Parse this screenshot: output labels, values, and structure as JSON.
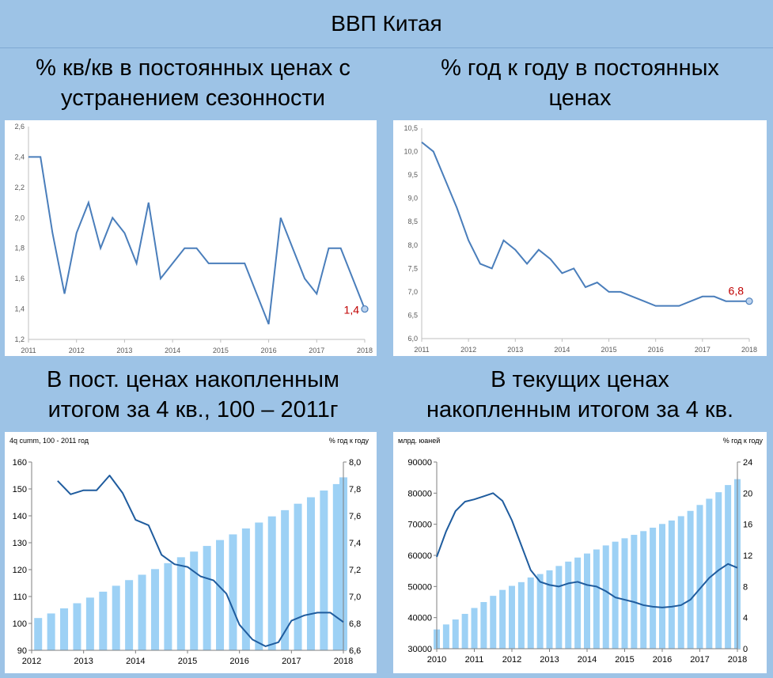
{
  "page_title": "ВВП Китая",
  "headers": [
    {
      "line1": "% кв/кв в постоянных ценах с",
      "line2": "устранением сезонности"
    },
    {
      "line1": "% год к году в постоянных",
      "line2": "ценах"
    },
    {
      "line1": "В пост. ценах накопленным",
      "line2": "итогом за 4 кв., 100 – 2011г"
    },
    {
      "line1": "В текущих ценах",
      "line2": "накопленным итогом за 4 кв."
    }
  ],
  "chart_data": [
    {
      "type": "line",
      "title": "",
      "y_ticks": [
        "2,6",
        "2,4",
        "2,2",
        "2,0",
        "1,8",
        "1,6",
        "1,4",
        "1,2"
      ],
      "x_ticks": [
        "2011",
        "2012",
        "2013",
        "2014",
        "2015",
        "2016",
        "2017",
        "2018"
      ],
      "ylim": [
        1.2,
        2.6
      ],
      "xlim": [
        2011,
        2018
      ],
      "x": [
        2011.0,
        2011.25,
        2011.5,
        2011.75,
        2012.0,
        2012.25,
        2012.5,
        2012.75,
        2013.0,
        2013.25,
        2013.5,
        2013.75,
        2014.0,
        2014.25,
        2014.5,
        2014.75,
        2015.0,
        2015.25,
        2015.5,
        2015.75,
        2016.0,
        2016.25,
        2016.5,
        2016.75,
        2017.0,
        2017.25,
        2017.5,
        2017.75,
        2018.0
      ],
      "values": [
        2.4,
        2.4,
        1.9,
        1.5,
        1.9,
        2.1,
        1.8,
        2.0,
        1.9,
        1.7,
        2.1,
        1.6,
        1.7,
        1.8,
        1.8,
        1.7,
        1.7,
        1.7,
        1.7,
        1.5,
        1.3,
        2.0,
        1.8,
        1.6,
        1.5,
        1.8,
        1.8,
        1.6,
        1.4
      ],
      "last_label": "1,4",
      "color": "#4a7ebb",
      "label_color": "#c00000",
      "grid": false
    },
    {
      "type": "line",
      "title": "",
      "y_ticks": [
        "10,5",
        "10,0",
        "9,5",
        "9,0",
        "8,5",
        "8,0",
        "7,5",
        "7,0",
        "6,5",
        "6,0"
      ],
      "x_ticks": [
        "2011",
        "2012",
        "2013",
        "2014",
        "2015",
        "2016",
        "2017",
        "2018"
      ],
      "ylim": [
        6.0,
        10.5
      ],
      "xlim": [
        2011,
        2018
      ],
      "x": [
        2011.0,
        2011.25,
        2011.5,
        2011.75,
        2012.0,
        2012.25,
        2012.5,
        2012.75,
        2013.0,
        2013.25,
        2013.5,
        2013.75,
        2014.0,
        2014.25,
        2014.5,
        2014.75,
        2015.0,
        2015.25,
        2015.5,
        2015.75,
        2016.0,
        2016.25,
        2016.5,
        2016.75,
        2017.0,
        2017.25,
        2017.5,
        2017.75,
        2018.0
      ],
      "values": [
        10.2,
        10.0,
        9.4,
        8.8,
        8.1,
        7.6,
        7.5,
        8.1,
        7.9,
        7.6,
        7.9,
        7.7,
        7.4,
        7.5,
        7.1,
        7.2,
        7.0,
        7.0,
        6.9,
        6.8,
        6.7,
        6.7,
        6.7,
        6.8,
        6.9,
        6.9,
        6.8,
        6.8,
        6.8
      ],
      "last_label": "6,8",
      "color": "#4a7ebb",
      "label_color": "#c00000",
      "grid": false
    },
    {
      "type": "bar+line",
      "title": "4q cumm, 100 - 2011 год",
      "right_title": "% год к году",
      "y_ticks": [
        "160",
        "150",
        "140",
        "130",
        "120",
        "110",
        "100",
        "90"
      ],
      "y2_ticks": [
        "8,0",
        "7,8",
        "7,6",
        "7,4",
        "7,2",
        "7,0",
        "6,8",
        "6,6"
      ],
      "x_ticks": [
        "2012",
        "2013",
        "2014",
        "2015",
        "2016",
        "2017",
        "2018"
      ],
      "ylim": [
        90,
        160
      ],
      "y2lim": [
        6.6,
        8.0
      ],
      "xlim": [
        2012,
        2018
      ],
      "bar_x": [
        2012.125,
        2012.375,
        2012.625,
        2012.875,
        2013.125,
        2013.375,
        2013.625,
        2013.875,
        2014.125,
        2014.375,
        2014.625,
        2014.875,
        2015.125,
        2015.375,
        2015.625,
        2015.875,
        2016.125,
        2016.375,
        2016.625,
        2016.875,
        2017.125,
        2017.375,
        2017.625,
        2017.875
      ],
      "bars": [
        102,
        103.7,
        105.6,
        107.5,
        109.6,
        111.8,
        114,
        116.1,
        118.1,
        120.2,
        122.4,
        124.6,
        126.7,
        128.8,
        131,
        133.1,
        135.3,
        137.5,
        139.8,
        142.1,
        144.5,
        146.9,
        149.4,
        151.8
      ],
      "bar_end": {
        "x": 2018.0,
        "value": 154.3
      },
      "line_x": [
        2012.5,
        2012.75,
        2013.0,
        2013.25,
        2013.5,
        2013.75,
        2014.0,
        2014.25,
        2014.5,
        2014.75,
        2015.0,
        2015.25,
        2015.5,
        2015.75,
        2016.0,
        2016.25,
        2016.5,
        2016.75,
        2017.0,
        2017.25,
        2017.5,
        2017.75,
        2018.0
      ],
      "line": [
        7.86,
        7.76,
        7.79,
        7.79,
        7.9,
        7.77,
        7.57,
        7.53,
        7.31,
        7.24,
        7.22,
        7.15,
        7.12,
        7.02,
        6.79,
        6.68,
        6.63,
        6.66,
        6.82,
        6.86,
        6.88,
        6.88,
        6.81
      ],
      "bar_color": "#9dd1f5",
      "line_color": "#1f5c9e"
    },
    {
      "type": "bar+line",
      "title": "млрд. юаней",
      "right_title": "% год к году",
      "y_ticks": [
        "90000",
        "80000",
        "70000",
        "60000",
        "50000",
        "40000",
        "30000"
      ],
      "y2_ticks": [
        "24",
        "20",
        "16",
        "12",
        "8",
        "4",
        "0"
      ],
      "x_ticks": [
        "2010",
        "2011",
        "2012",
        "2013",
        "2014",
        "2015",
        "2016",
        "2017",
        "2018"
      ],
      "ylim": [
        30000,
        90000
      ],
      "y2lim": [
        0,
        24
      ],
      "xlim": [
        2010,
        2018
      ],
      "bar_x": [
        2010.0,
        2010.25,
        2010.5,
        2010.75,
        2011.0,
        2011.25,
        2011.5,
        2011.75,
        2012.0,
        2012.25,
        2012.5,
        2012.75,
        2013.0,
        2013.25,
        2013.5,
        2013.75,
        2014.0,
        2014.25,
        2014.5,
        2014.75,
        2015.0,
        2015.25,
        2015.5,
        2015.75,
        2016.0,
        2016.25,
        2016.5,
        2016.75,
        2017.0,
        2017.25,
        2017.5,
        2017.75,
        2018.0
      ],
      "bars": [
        36200,
        37800,
        39400,
        41200,
        43100,
        45000,
        47000,
        48900,
        50200,
        51400,
        52900,
        54000,
        55200,
        56600,
        58000,
        59300,
        60600,
        61900,
        63200,
        64400,
        65500,
        66600,
        67800,
        68900,
        70100,
        71200,
        72600,
        74300,
        76200,
        78200,
        80300,
        82600,
        84500
      ],
      "line_x": [
        2010.0,
        2010.25,
        2010.5,
        2010.75,
        2011.0,
        2011.25,
        2011.5,
        2011.75,
        2012.0,
        2012.25,
        2012.5,
        2012.75,
        2013.0,
        2013.25,
        2013.5,
        2013.75,
        2014.0,
        2014.25,
        2014.5,
        2014.75,
        2015.0,
        2015.25,
        2015.5,
        2015.75,
        2016.0,
        2016.25,
        2016.5,
        2016.75,
        2017.0,
        2017.25,
        2017.5,
        2017.75,
        2018.0
      ],
      "line": [
        11.8,
        15.1,
        17.7,
        18.9,
        19.2,
        19.6,
        20.0,
        19.0,
        16.5,
        13.3,
        10.1,
        8.6,
        8.2,
        8.0,
        8.4,
        8.6,
        8.2,
        8.0,
        7.4,
        6.6,
        6.3,
        6.0,
        5.6,
        5.4,
        5.3,
        5.4,
        5.6,
        6.3,
        7.7,
        9.1,
        10.1,
        10.9,
        10.4
      ],
      "bar_color": "#9dd1f5",
      "line_color": "#1f5c9e"
    }
  ]
}
